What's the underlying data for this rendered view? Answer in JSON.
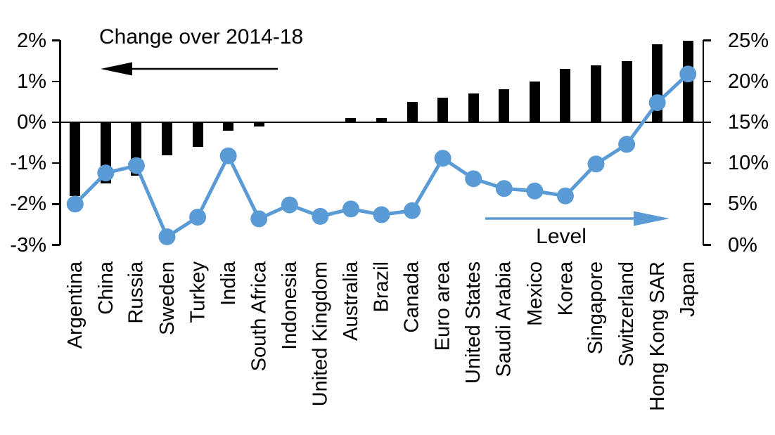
{
  "chart_data": {
    "type": "combo",
    "categories": [
      "Argentina",
      "China",
      "Russia",
      "Sweden",
      "Turkey",
      "India",
      "South Africa",
      "Indonesia",
      "United Kingdom",
      "Australia",
      "Brazil",
      "Canada",
      "Euro area",
      "United States",
      "Saudi Arabia",
      "Mexico",
      "Korea",
      "Singapore",
      "Switzerland",
      "Hong Kong SAR",
      "Japan"
    ],
    "series": [
      {
        "name": "Change over 2014-18",
        "type": "bar",
        "axis": "left",
        "color": "#000000",
        "values": [
          -1.8,
          -1.5,
          -1.3,
          -0.8,
          -0.6,
          -0.2,
          -0.1,
          0.0,
          0.0,
          0.1,
          0.1,
          0.5,
          0.6,
          0.7,
          0.8,
          1.0,
          1.3,
          1.4,
          1.5,
          1.9,
          2.0
        ]
      },
      {
        "name": "Level",
        "type": "line",
        "axis": "right",
        "color": "#5b9bd5",
        "values": [
          5.0,
          8.8,
          9.7,
          1.0,
          3.4,
          10.9,
          3.2,
          4.9,
          3.5,
          4.4,
          3.7,
          4.2,
          10.6,
          8.1,
          6.9,
          6.6,
          6.0,
          9.9,
          12.3,
          17.4,
          20.9
        ]
      }
    ],
    "left_axis": {
      "unit": "%",
      "range": [
        -3,
        2
      ],
      "tick_values": [
        2,
        1,
        0,
        -1,
        -2,
        -3
      ],
      "tick_labels": [
        "2%",
        "1%",
        "0%",
        "-1%",
        "-2%",
        "-3%"
      ]
    },
    "right_axis": {
      "unit": "%",
      "range": [
        0,
        25
      ],
      "tick_values": [
        25,
        20,
        15,
        10,
        5,
        0
      ],
      "tick_labels": [
        "25%",
        "20%",
        "15%",
        "10%",
        "5%",
        "0%"
      ]
    },
    "annotations": {
      "change": {
        "text": "Change over 2014-18",
        "arrow_direction": "left",
        "color": "#000000"
      },
      "level": {
        "text": "Level",
        "arrow_direction": "right",
        "color": "#5b9bd5"
      }
    },
    "grid": false,
    "legend_position": "none"
  }
}
